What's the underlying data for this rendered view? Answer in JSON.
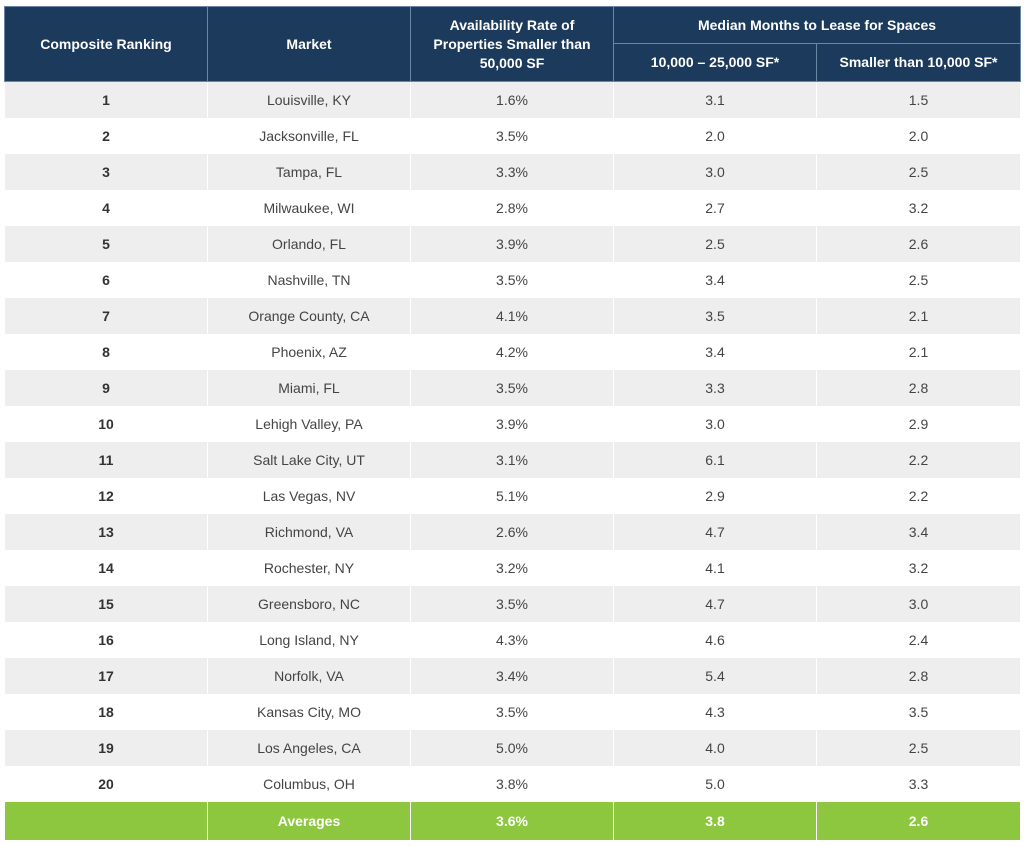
{
  "header": {
    "composite_ranking": "Composite Ranking",
    "market": "Market",
    "availability": "Availability Rate of Properties Smaller than 50,000 SF",
    "median_group": "Median Months to Lease for Spaces",
    "sub_mid": "10,000 – 25,000 SF*",
    "sub_small": "Smaller than 10,000 SF*"
  },
  "rows": [
    {
      "rank": "1",
      "market": "Louisville, KY",
      "availability": "1.6%",
      "mid": "3.1",
      "small": "1.5"
    },
    {
      "rank": "2",
      "market": "Jacksonville, FL",
      "availability": "3.5%",
      "mid": "2.0",
      "small": "2.0"
    },
    {
      "rank": "3",
      "market": "Tampa, FL",
      "availability": "3.3%",
      "mid": "3.0",
      "small": "2.5"
    },
    {
      "rank": "4",
      "market": "Milwaukee, WI",
      "availability": "2.8%",
      "mid": "2.7",
      "small": "3.2"
    },
    {
      "rank": "5",
      "market": "Orlando, FL",
      "availability": "3.9%",
      "mid": "2.5",
      "small": "2.6"
    },
    {
      "rank": "6",
      "market": "Nashville, TN",
      "availability": "3.5%",
      "mid": "3.4",
      "small": "2.5"
    },
    {
      "rank": "7",
      "market": "Orange County, CA",
      "availability": "4.1%",
      "mid": "3.5",
      "small": "2.1"
    },
    {
      "rank": "8",
      "market": "Phoenix, AZ",
      "availability": "4.2%",
      "mid": "3.4",
      "small": "2.1"
    },
    {
      "rank": "9",
      "market": "Miami, FL",
      "availability": "3.5%",
      "mid": "3.3",
      "small": "2.8"
    },
    {
      "rank": "10",
      "market": "Lehigh Valley, PA",
      "availability": "3.9%",
      "mid": "3.0",
      "small": "2.9"
    },
    {
      "rank": "11",
      "market": "Salt Lake City, UT",
      "availability": "3.1%",
      "mid": "6.1",
      "small": "2.2"
    },
    {
      "rank": "12",
      "market": "Las Vegas, NV",
      "availability": "5.1%",
      "mid": "2.9",
      "small": "2.2"
    },
    {
      "rank": "13",
      "market": "Richmond, VA",
      "availability": "2.6%",
      "mid": "4.7",
      "small": "3.4"
    },
    {
      "rank": "14",
      "market": "Rochester, NY",
      "availability": "3.2%",
      "mid": "4.1",
      "small": "3.2"
    },
    {
      "rank": "15",
      "market": "Greensboro, NC",
      "availability": "3.5%",
      "mid": "4.7",
      "small": "3.0"
    },
    {
      "rank": "16",
      "market": "Long Island, NY",
      "availability": "4.3%",
      "mid": "4.6",
      "small": "2.4"
    },
    {
      "rank": "17",
      "market": "Norfolk, VA",
      "availability": "3.4%",
      "mid": "5.4",
      "small": "2.8"
    },
    {
      "rank": "18",
      "market": "Kansas City, MO",
      "availability": "3.5%",
      "mid": "4.3",
      "small": "3.5"
    },
    {
      "rank": "19",
      "market": "Los Angeles, CA",
      "availability": "5.0%",
      "mid": "4.0",
      "small": "2.5"
    },
    {
      "rank": "20",
      "market": "Columbus, OH",
      "availability": "3.8%",
      "mid": "5.0",
      "small": "3.3"
    }
  ],
  "averages": {
    "label": "Averages",
    "availability": "3.6%",
    "mid": "3.8",
    "small": "2.6"
  },
  "colors": {
    "header_bg": "#1b3a5c",
    "averages_bg": "#8dc63f",
    "stripe": "#eeeeee"
  }
}
